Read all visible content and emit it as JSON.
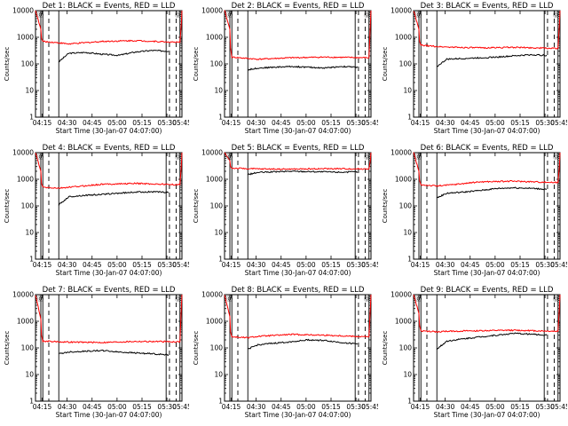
{
  "common": {
    "xlabel": "Start Time (30-Jan-07 04:07:00)",
    "ylabel": "Counts/sec",
    "x_tick_labels": [
      "04:15",
      "04:30",
      "04:45",
      "05:00",
      "05:15",
      "05:30",
      "05:45"
    ],
    "y_tick_labels": [
      "1",
      "10",
      "100",
      "1000",
      "10000"
    ],
    "colors": {
      "events": "#000000",
      "lld": "#ff0000"
    },
    "y_scale": "log"
  },
  "chart_data": [
    {
      "type": "line",
      "title": "Det 1: BLACK = Events, RED = LLD",
      "ylim": [
        1,
        10000
      ],
      "series": [
        {
          "name": "Events",
          "x": [
            4.4,
            14,
            20,
            30,
            40,
            50,
            60,
            70,
            80,
            86.8
          ],
          "values": [
            null,
            120,
            250,
            270,
            230,
            210,
            280,
            320,
            300,
            null
          ]
        },
        {
          "name": "LLD",
          "x": [
            0,
            3.2,
            3.6,
            4.4,
            14,
            20,
            40,
            60,
            86.8,
            87.6,
            88
          ],
          "values": [
            10000,
            2000,
            900,
            700,
            620,
            560,
            700,
            750,
            640,
            3000,
            10000
          ]
        }
      ]
    },
    {
      "type": "line",
      "title": "Det 2: BLACK = Events, RED = LLD",
      "ylim": [
        1,
        10000
      ],
      "series": [
        {
          "name": "Events",
          "x": [
            4.4,
            14,
            20,
            30,
            40,
            50,
            60,
            70,
            80,
            86.8
          ],
          "values": [
            null,
            60,
            70,
            75,
            80,
            75,
            70,
            80,
            75,
            null
          ]
        },
        {
          "name": "LLD",
          "x": [
            0,
            3.2,
            3.6,
            4.4,
            14,
            20,
            40,
            60,
            86.8,
            87.6,
            88
          ],
          "values": [
            10000,
            2000,
            400,
            180,
            160,
            150,
            170,
            180,
            170,
            3000,
            10000
          ]
        }
      ]
    },
    {
      "type": "line",
      "title": "Det 3: BLACK = Events, RED = LLD",
      "ylim": [
        1,
        10000
      ],
      "series": [
        {
          "name": "Events",
          "x": [
            4.4,
            14,
            20,
            30,
            40,
            50,
            60,
            70,
            80,
            86.8
          ],
          "values": [
            null,
            80,
            150,
            160,
            170,
            180,
            200,
            220,
            210,
            null
          ]
        },
        {
          "name": "LLD",
          "x": [
            0,
            3.2,
            3.6,
            4.4,
            14,
            20,
            40,
            60,
            86.8,
            87.6,
            88
          ],
          "values": [
            10000,
            2000,
            700,
            500,
            450,
            430,
            400,
            420,
            380,
            3000,
            10000
          ]
        }
      ]
    },
    {
      "type": "line",
      "title": "Det 4: BLACK = Events, RED = LLD",
      "ylim": [
        1,
        10000
      ],
      "series": [
        {
          "name": "Events",
          "x": [
            4.4,
            14,
            20,
            30,
            40,
            50,
            60,
            70,
            80,
            86.8
          ],
          "values": [
            null,
            110,
            220,
            250,
            270,
            300,
            330,
            340,
            320,
            null
          ]
        },
        {
          "name": "LLD",
          "x": [
            0,
            3.2,
            3.6,
            4.4,
            14,
            20,
            40,
            60,
            86.8,
            87.6,
            88
          ],
          "values": [
            10000,
            2000,
            700,
            500,
            460,
            500,
            650,
            700,
            620,
            3000,
            10000
          ]
        }
      ]
    },
    {
      "type": "line",
      "title": "Det 5: BLACK = Events, RED = LLD",
      "ylim": [
        1,
        10000
      ],
      "series": [
        {
          "name": "Events",
          "x": [
            4.4,
            14,
            20,
            30,
            40,
            50,
            60,
            70,
            80,
            86.8
          ],
          "values": [
            null,
            1500,
            1800,
            1900,
            2000,
            1950,
            1900,
            1850,
            1900,
            null
          ]
        },
        {
          "name": "LLD",
          "x": [
            0,
            3.2,
            3.6,
            4.4,
            14,
            20,
            40,
            60,
            86.8,
            87.6,
            88
          ],
          "values": [
            10000,
            5000,
            3000,
            2600,
            2500,
            2450,
            2400,
            2500,
            2450,
            5000,
            10000
          ]
        }
      ]
    },
    {
      "type": "line",
      "title": "Det 6: BLACK = Events, RED = LLD",
      "ylim": [
        1,
        10000
      ],
      "series": [
        {
          "name": "Events",
          "x": [
            4.4,
            14,
            20,
            30,
            40,
            50,
            60,
            70,
            80,
            86.8
          ],
          "values": [
            null,
            200,
            300,
            330,
            380,
            450,
            480,
            460,
            420,
            null
          ]
        },
        {
          "name": "LLD",
          "x": [
            0,
            3.2,
            3.6,
            4.4,
            14,
            20,
            40,
            60,
            86.8,
            87.6,
            88
          ],
          "values": [
            10000,
            2000,
            900,
            620,
            560,
            600,
            800,
            850,
            750,
            3000,
            10000
          ]
        }
      ]
    },
    {
      "type": "line",
      "title": "Det 7: BLACK = Events, RED = LLD",
      "ylim": [
        1,
        10000
      ],
      "series": [
        {
          "name": "Events",
          "x": [
            4.4,
            14,
            20,
            30,
            40,
            50,
            60,
            70,
            80,
            86.8
          ],
          "values": [
            null,
            60,
            70,
            75,
            80,
            70,
            65,
            60,
            55,
            null
          ]
        },
        {
          "name": "LLD",
          "x": [
            0,
            3.2,
            3.6,
            4.4,
            14,
            20,
            40,
            60,
            86.8,
            87.6,
            88
          ],
          "values": [
            10000,
            1200,
            300,
            180,
            170,
            165,
            160,
            175,
            170,
            3000,
            10000
          ]
        }
      ]
    },
    {
      "type": "line",
      "title": "Det 8: BLACK = Events, RED = LLD",
      "ylim": [
        1,
        10000
      ],
      "series": [
        {
          "name": "Events",
          "x": [
            4.4,
            14,
            20,
            30,
            40,
            50,
            60,
            70,
            80,
            86.8
          ],
          "values": [
            null,
            90,
            130,
            150,
            170,
            200,
            190,
            160,
            140,
            null
          ]
        },
        {
          "name": "LLD",
          "x": [
            0,
            3.2,
            3.6,
            4.4,
            14,
            20,
            40,
            60,
            86.8,
            87.6,
            88
          ],
          "values": [
            10000,
            1500,
            400,
            260,
            240,
            270,
            320,
            300,
            260,
            3000,
            10000
          ]
        }
      ]
    },
    {
      "type": "line",
      "title": "Det 9: BLACK = Events, RED = LLD",
      "ylim": [
        1,
        10000
      ],
      "series": [
        {
          "name": "Events",
          "x": [
            4.4,
            14,
            20,
            30,
            40,
            50,
            60,
            70,
            80,
            86.8
          ],
          "values": [
            null,
            90,
            180,
            220,
            260,
            300,
            350,
            330,
            300,
            null
          ]
        },
        {
          "name": "LLD",
          "x": [
            0,
            3.2,
            3.6,
            4.4,
            14,
            20,
            40,
            60,
            86.8,
            87.6,
            88
          ],
          "values": [
            10000,
            2000,
            700,
            430,
            400,
            420,
            440,
            460,
            420,
            3000,
            10000
          ]
        }
      ]
    }
  ]
}
